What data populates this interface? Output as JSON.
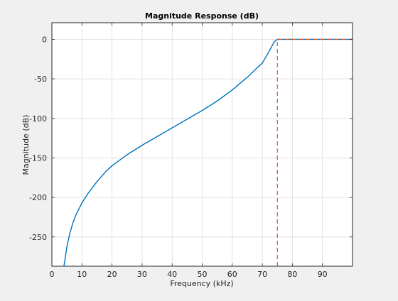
{
  "chart_data": {
    "type": "line",
    "title": "Magnitude Response (dB)",
    "xlabel": "Frequency (kHz)",
    "ylabel": "Magnitude (dB)",
    "xlim": [
      0,
      100
    ],
    "ylim": [
      -287,
      21
    ],
    "x_ticks": [
      0,
      10,
      20,
      30,
      40,
      50,
      60,
      70,
      80,
      90
    ],
    "y_ticks": [
      0,
      -50,
      -100,
      -150,
      -200,
      -250
    ],
    "x_tick_labels": [
      "0",
      "10",
      "20",
      "30",
      "40",
      "50",
      "60",
      "70",
      "80",
      "90"
    ],
    "y_tick_labels": [
      "0",
      "-50",
      "-100",
      "-150",
      "-200",
      "-250"
    ],
    "grid": true,
    "series": [
      {
        "color": "#0072bd",
        "style": "solid",
        "x": [
          4.0,
          4.5,
          5,
          6,
          7,
          8,
          10,
          12,
          15,
          18,
          20,
          25,
          30,
          35,
          40,
          45,
          50,
          55,
          60,
          65,
          68,
          70,
          72,
          73,
          74,
          75,
          76,
          80,
          90,
          100
        ],
        "y": [
          -287,
          -275,
          -262,
          -245,
          -232,
          -222,
          -207,
          -195,
          -180,
          -167,
          -160,
          -146,
          -134,
          -123,
          -112,
          -101,
          -90,
          -78,
          -64,
          -48,
          -37,
          -30,
          -17,
          -10,
          -3,
          0,
          0,
          0,
          0,
          0
        ]
      },
      {
        "color": "#d95319",
        "style": "dashed",
        "x": [
          75,
          75,
          100
        ],
        "y": [
          -287,
          0,
          0
        ]
      }
    ]
  }
}
